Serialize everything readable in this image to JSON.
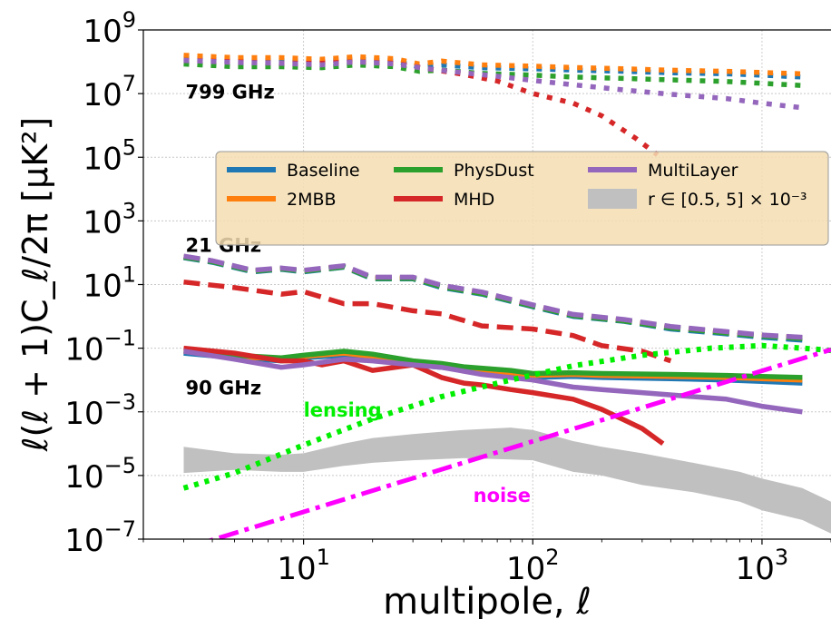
{
  "chart_data": {
    "type": "line",
    "title": "",
    "xlabel": "multipole, ℓ",
    "ylabel": "ℓ(ℓ + 1)C_ℓ/2π [μK²]",
    "xscale": "log",
    "yscale": "log",
    "xlim": [
      2,
      2000
    ],
    "ylim": [
      1e-07,
      1000000000.0
    ],
    "grid": true,
    "legend_position": "upper-center",
    "x_ticks": [
      {
        "value": 10,
        "base": "10",
        "exp": "1"
      },
      {
        "value": 100,
        "base": "10",
        "exp": "2"
      },
      {
        "value": 1000,
        "base": "10",
        "exp": "3"
      }
    ],
    "y_ticks": [
      {
        "value": 1e-07,
        "base": "10",
        "exp": "−7"
      },
      {
        "value": 1e-05,
        "base": "10",
        "exp": "−5"
      },
      {
        "value": 0.001,
        "base": "10",
        "exp": "−3"
      },
      {
        "value": 0.1,
        "base": "10",
        "exp": "−1"
      },
      {
        "value": 10,
        "base": "10",
        "exp": "1"
      },
      {
        "value": 1000.0,
        "base": "10",
        "exp": "3"
      },
      {
        "value": 100000.0,
        "base": "10",
        "exp": "5"
      },
      {
        "value": 10000000.0,
        "base": "10",
        "exp": "7"
      },
      {
        "value": 1000000000.0,
        "base": "10",
        "exp": "9"
      }
    ],
    "colors": {
      "Baseline": "#1f77b4",
      "2MBB": "#ff7f0e",
      "PhysDust": "#2ca02c",
      "MHD": "#d62728",
      "MultiLayer": "#9467bd",
      "r_band": "#c0c0c0",
      "lensing": "#00ee00",
      "noise": "#ff00ff"
    },
    "legend": [
      {
        "key": "Baseline",
        "label": "Baseline",
        "kind": "line"
      },
      {
        "key": "2MBB",
        "label": "2MBB",
        "kind": "line"
      },
      {
        "key": "PhysDust",
        "label": "PhysDust",
        "kind": "line"
      },
      {
        "key": "MHD",
        "label": "MHD",
        "kind": "line"
      },
      {
        "key": "MultiLayer",
        "label": "MultiLayer",
        "kind": "line"
      },
      {
        "key": "r_band",
        "label": "r ∈ [0.5, 5] × 10⁻³",
        "kind": "band"
      }
    ],
    "frequency_labels": [
      {
        "text": "799 GHz",
        "x": 3,
        "y": 12000000.0
      },
      {
        "text": "21 GHz",
        "x": 3,
        "y": 180
      },
      {
        "text": "90 GHz",
        "x": 3,
        "y": 0.006
      }
    ],
    "curve_labels": [
      {
        "text": "lensing",
        "color_key": "lensing",
        "x": 10,
        "y": 0.0007
      },
      {
        "text": "noise",
        "color_key": "noise",
        "x": 55,
        "y": 1.5e-06
      }
    ],
    "series": [
      {
        "name": "Baseline",
        "frequency": "799 GHz",
        "style": "dotted",
        "x": [
          3,
          5,
          8,
          12,
          17,
          25,
          32,
          40,
          60,
          100,
          150,
          250,
          400,
          700,
          1000,
          1500
        ],
        "y": [
          130000000.0,
          110000000.0,
          110000000.0,
          100000000.0,
          120000000.0,
          105000000.0,
          70000000.0,
          80000000.0,
          65000000.0,
          60000000.0,
          55000000.0,
          50000000.0,
          45000000.0,
          42000000.0,
          38000000.0,
          33000000.0
        ]
      },
      {
        "name": "2MBB",
        "frequency": "799 GHz",
        "style": "dotted",
        "x": [
          3,
          5,
          8,
          12,
          17,
          25,
          32,
          40,
          60,
          100,
          150,
          250,
          400,
          700,
          1000,
          1500
        ],
        "y": [
          160000000.0,
          135000000.0,
          135000000.0,
          120000000.0,
          145000000.0,
          125000000.0,
          85000000.0,
          105000000.0,
          80000000.0,
          73000000.0,
          66000000.0,
          60000000.0,
          54000000.0,
          50000000.0,
          46000000.0,
          42000000.0
        ]
      },
      {
        "name": "PhysDust",
        "frequency": "799 GHz",
        "style": "dotted",
        "x": [
          3,
          5,
          8,
          12,
          17,
          25,
          32,
          40,
          60,
          100,
          150,
          250,
          400,
          700,
          1000,
          1500
        ],
        "y": [
          85000000.0,
          70000000.0,
          70000000.0,
          65000000.0,
          80000000.0,
          70000000.0,
          50000000.0,
          55000000.0,
          43000000.0,
          38000000.0,
          33000000.0,
          30000000.0,
          27000000.0,
          24000000.0,
          21000000.0,
          18000000.0
        ]
      },
      {
        "name": "MHD",
        "frequency": "799 GHz",
        "style": "dotted",
        "x": [
          3,
          5,
          8,
          12,
          17,
          25,
          35,
          50,
          70,
          100,
          150,
          200,
          280,
          350
        ],
        "y": [
          110000000.0,
          100000000.0,
          90000000.0,
          90000000.0,
          100000000.0,
          90000000.0,
          60000000.0,
          40000000.0,
          25000000.0,
          10000000.0,
          5000000.0,
          2000000.0,
          400000.0,
          120000.0
        ]
      },
      {
        "name": "MultiLayer",
        "frequency": "799 GHz",
        "style": "dotted",
        "x": [
          3,
          5,
          8,
          12,
          17,
          25,
          35,
          50,
          70,
          100,
          150,
          250,
          400,
          700,
          1000,
          1500
        ],
        "y": [
          110000000.0,
          95000000.0,
          90000000.0,
          80000000.0,
          100000000.0,
          85000000.0,
          60000000.0,
          45000000.0,
          35000000.0,
          26000000.0,
          19000000.0,
          13000000.0,
          9500000.0,
          7000000.0,
          5000000.0,
          3600000.0
        ]
      },
      {
        "name": "Baseline",
        "frequency": "21 GHz",
        "style": "dashed",
        "x": [
          3,
          4,
          6,
          8,
          10,
          15,
          20,
          30,
          40,
          60,
          100,
          150,
          250,
          400,
          700,
          1000,
          1500
        ],
        "y": [
          70,
          50,
          25,
          30,
          25,
          35,
          15,
          15,
          8,
          5,
          2.0,
          1.0,
          0.7,
          0.4,
          0.28,
          0.22,
          0.18
        ]
      },
      {
        "name": "2MBB",
        "frequency": "21 GHz",
        "style": "dashed",
        "x": [
          3,
          4,
          6,
          8,
          10,
          15,
          20,
          30,
          40,
          60,
          100,
          150,
          250,
          400,
          700,
          1000,
          1500
        ],
        "y": [
          75,
          55,
          27,
          32,
          27,
          38,
          16,
          16,
          9,
          5.5,
          2.2,
          1.1,
          0.75,
          0.45,
          0.31,
          0.25,
          0.21
        ]
      },
      {
        "name": "PhysDust",
        "frequency": "21 GHz",
        "style": "dashed",
        "x": [
          3,
          4,
          6,
          8,
          10,
          15,
          20,
          30,
          40,
          60,
          100,
          150,
          250,
          400,
          700,
          1000,
          1500
        ],
        "y": [
          72,
          52,
          26,
          31,
          26,
          36,
          15.5,
          15.5,
          8.5,
          5.2,
          2.1,
          1.05,
          0.72,
          0.43,
          0.3,
          0.24,
          0.2
        ]
      },
      {
        "name": "MHD",
        "frequency": "21 GHz",
        "style": "dashed",
        "x": [
          3,
          5,
          8,
          10,
          15,
          20,
          30,
          40,
          60,
          100,
          150,
          200,
          300,
          400
        ],
        "y": [
          12,
          8,
          5,
          6,
          2.5,
          2.5,
          1.5,
          1.2,
          0.5,
          0.4,
          0.25,
          0.12,
          0.08,
          0.04
        ]
      },
      {
        "name": "MultiLayer",
        "frequency": "21 GHz",
        "style": "dashed",
        "x": [
          3,
          4,
          6,
          8,
          10,
          15,
          20,
          30,
          40,
          60,
          100,
          150,
          250,
          400,
          700,
          1000,
          1500
        ],
        "y": [
          78,
          56,
          28,
          33,
          28,
          39,
          17,
          17,
          9.5,
          5.8,
          2.3,
          1.15,
          0.8,
          0.48,
          0.33,
          0.26,
          0.22
        ]
      },
      {
        "name": "Baseline",
        "frequency": "90 GHz",
        "style": "solid",
        "x": [
          3,
          5,
          8,
          10,
          15,
          20,
          30,
          40,
          50,
          80,
          100,
          150,
          200,
          400,
          700,
          1000,
          1500
        ],
        "y": [
          0.07,
          0.05,
          0.04,
          0.05,
          0.06,
          0.05,
          0.03,
          0.025,
          0.02,
          0.015,
          0.012,
          0.013,
          0.012,
          0.011,
          0.01,
          0.009,
          0.008
        ]
      },
      {
        "name": "2MBB",
        "frequency": "90 GHz",
        "style": "solid",
        "x": [
          3,
          5,
          8,
          10,
          15,
          20,
          30,
          40,
          50,
          80,
          100,
          150,
          200,
          400,
          700,
          1000,
          1500
        ],
        "y": [
          0.08,
          0.055,
          0.045,
          0.055,
          0.07,
          0.055,
          0.035,
          0.028,
          0.022,
          0.017,
          0.014,
          0.015,
          0.014,
          0.013,
          0.012,
          0.011,
          0.01
        ]
      },
      {
        "name": "PhysDust",
        "frequency": "90 GHz",
        "style": "solid",
        "x": [
          3,
          5,
          8,
          10,
          15,
          20,
          30,
          40,
          50,
          80,
          100,
          150,
          200,
          400,
          700,
          1000,
          1500
        ],
        "y": [
          0.085,
          0.06,
          0.05,
          0.06,
          0.08,
          0.065,
          0.04,
          0.033,
          0.026,
          0.02,
          0.016,
          0.017,
          0.016,
          0.015,
          0.014,
          0.013,
          0.012
        ]
      },
      {
        "name": "MHD",
        "frequency": "90 GHz",
        "style": "solid",
        "x": [
          3,
          5,
          8,
          10,
          12,
          15,
          20,
          30,
          40,
          50,
          60,
          80,
          100,
          150,
          200,
          300,
          370
        ],
        "y": [
          0.1,
          0.07,
          0.04,
          0.04,
          0.03,
          0.04,
          0.02,
          0.03,
          0.012,
          0.008,
          0.007,
          0.005,
          0.004,
          0.0025,
          0.0012,
          0.0003,
          0.0001
        ]
      },
      {
        "name": "MultiLayer",
        "frequency": "90 GHz",
        "style": "solid",
        "x": [
          3,
          5,
          8,
          10,
          15,
          20,
          30,
          40,
          60,
          100,
          150,
          200,
          300,
          500,
          700,
          1000,
          1500
        ],
        "y": [
          0.08,
          0.045,
          0.025,
          0.03,
          0.045,
          0.04,
          0.03,
          0.025,
          0.015,
          0.01,
          0.006,
          0.005,
          0.004,
          0.003,
          0.0025,
          0.0015,
          0.001
        ]
      },
      {
        "name": "lensing",
        "style": "dotted-thick",
        "x": [
          3,
          5,
          10,
          20,
          40,
          80,
          150,
          300,
          600,
          1000,
          1500,
          2000
        ],
        "y": [
          4e-06,
          1.2e-05,
          9e-05,
          0.0006,
          0.003,
          0.01,
          0.028,
          0.06,
          0.1,
          0.12,
          0.1,
          0.085
        ]
      },
      {
        "name": "noise",
        "style": "dashdot",
        "x": [
          3,
          2000
        ],
        "y": [
          5e-08,
          0.09
        ]
      }
    ],
    "r_band": {
      "label": "r ∈ [0.5, 5] × 10⁻³",
      "x": [
        3,
        5,
        8,
        10,
        15,
        20,
        30,
        50,
        80,
        100,
        150,
        200,
        300,
        500,
        800,
        1000,
        1500,
        2000
      ],
      "y_low": [
        1.2e-05,
        1.5e-05,
        1.3e-05,
        1.3e-05,
        2e-05,
        2.5e-05,
        3e-05,
        3.5e-05,
        3.2e-05,
        3e-05,
        1.3e-05,
        1e-05,
        5e-06,
        3e-06,
        1.5e-06,
        8e-07,
        4e-07,
        1.5e-07
      ],
      "y_high": [
        8e-05,
        5e-05,
        4.5e-05,
        5e-05,
        0.0001,
        0.00015,
        0.0002,
        0.00027,
        0.00032,
        0.00027,
        0.00012,
        8e-05,
        5e-05,
        2.5e-05,
        1.3e-05,
        8e-06,
        4e-06,
        1.5e-06
      ]
    }
  }
}
